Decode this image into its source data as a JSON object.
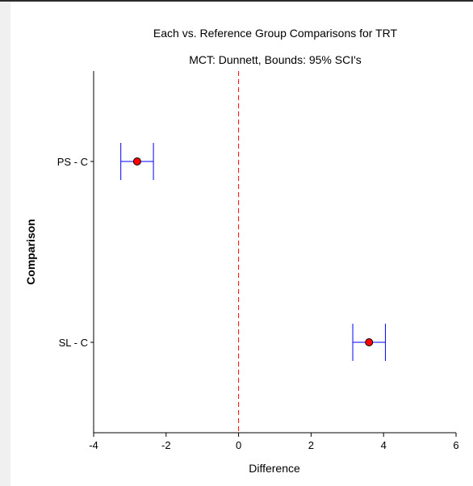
{
  "chart_data": {
    "type": "scatter",
    "title": "Each vs. Reference Group Comparisons for TRT",
    "subtitle": "MCT: Dunnett, Bounds: 95% SCI's",
    "xlabel": "Difference",
    "ylabel": "Comparison",
    "xlim": [
      -4,
      6
    ],
    "xticks": [
      -4,
      -2,
      0,
      2,
      4,
      6
    ],
    "reference_line": 0,
    "categories": [
      "PS - C",
      "SL - C"
    ],
    "estimates": [
      -2.8,
      3.6
    ],
    "lower": [
      -3.25,
      3.15
    ],
    "upper": [
      -2.35,
      4.05
    ],
    "grid": false,
    "colors": {
      "point": "#ff0000",
      "interval": "#0000ff",
      "reference": "#ff0000"
    }
  }
}
